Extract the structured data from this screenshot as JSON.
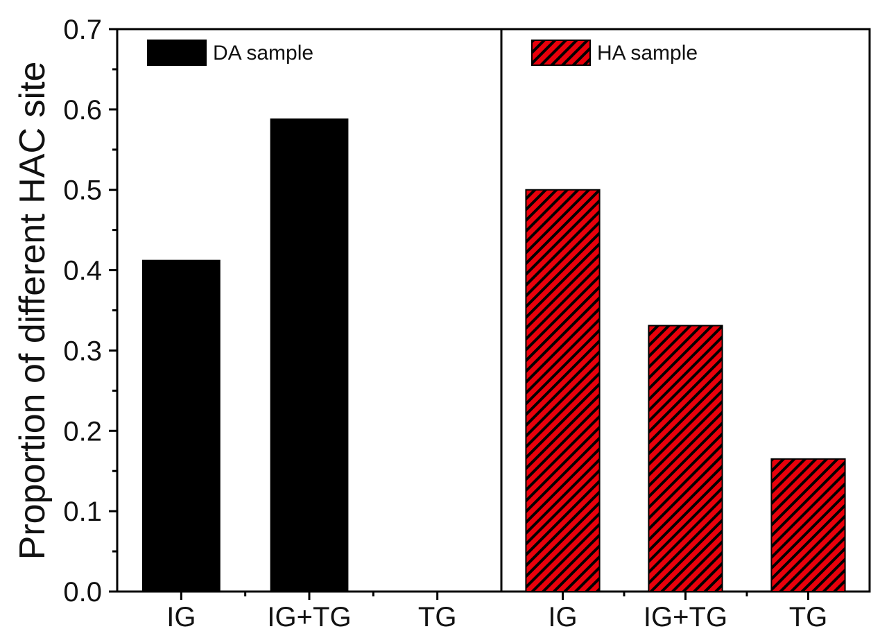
{
  "chart_data": {
    "type": "bar",
    "ylabel": "Proportion of different HAC site",
    "ylim": [
      0,
      0.7
    ],
    "yticks": [
      "0.0",
      "0.1",
      "0.2",
      "0.3",
      "0.4",
      "0.5",
      "0.6",
      "0.7"
    ],
    "yminor": true,
    "grid": false,
    "legend_position": "top of each panel",
    "panels": [
      {
        "legend": "DA sample",
        "color": "#000000",
        "pattern": "solid",
        "categories": [
          "IG",
          "IG+TG",
          "TG"
        ],
        "values": [
          0.412,
          0.588,
          0.0
        ]
      },
      {
        "legend": "HA sample",
        "color": "#e8000b",
        "pattern": "diagonal-hatch",
        "hatch_color": "#000000",
        "categories": [
          "IG",
          "IG+TG",
          "TG"
        ],
        "values": [
          0.5,
          0.331,
          0.165
        ]
      }
    ]
  }
}
